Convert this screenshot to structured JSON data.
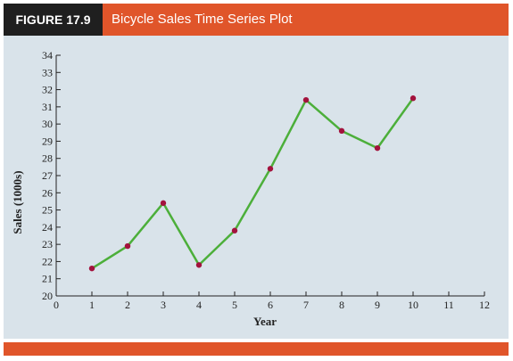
{
  "figure": {
    "label": "FIGURE 17.9",
    "title": "Bicycle Sales Time Series Plot"
  },
  "colors": {
    "header": "#e0552a",
    "label_bg": "#1f1f1f",
    "panel": "#d9e3ea",
    "line": "#4caf3a",
    "marker": "#a3123d"
  },
  "chart_data": {
    "type": "line",
    "title": "Bicycle Sales Time Series Plot",
    "xlabel": "Year",
    "ylabel": "Sales (1000s)",
    "xlim": [
      0,
      12
    ],
    "ylim": [
      20,
      34
    ],
    "xticks": [
      0,
      1,
      2,
      3,
      4,
      5,
      6,
      7,
      8,
      9,
      10,
      11,
      12
    ],
    "yticks": [
      20,
      21,
      22,
      23,
      24,
      25,
      26,
      27,
      28,
      29,
      30,
      31,
      32,
      33,
      34
    ],
    "grid": false,
    "series": [
      {
        "x": [
          1,
          2,
          3,
          4,
          5,
          6,
          7,
          8,
          9,
          10
        ],
        "values": [
          21.6,
          22.9,
          25.4,
          21.8,
          23.8,
          27.4,
          31.4,
          29.6,
          28.6,
          31.5
        ]
      }
    ]
  }
}
